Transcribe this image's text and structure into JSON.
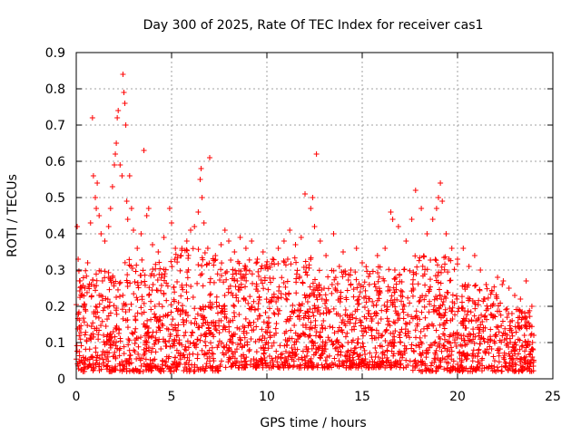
{
  "chart_data": {
    "type": "scatter",
    "title": "Day 300 of 2025, Rate Of TEC Index for receiver cas1",
    "xlabel": "GPS time / hours",
    "ylabel": "ROTI / TECUs",
    "xlim": [
      0,
      25
    ],
    "ylim": [
      0,
      0.9
    ],
    "xticks": [
      0,
      5,
      10,
      15,
      20,
      25
    ],
    "xtick_labels": [
      "0",
      "5",
      "10",
      "15",
      "20",
      "25"
    ],
    "yticks": [
      0,
      0.1,
      0.2,
      0.3,
      0.4,
      0.5,
      0.6,
      0.7,
      0.8,
      0.9
    ],
    "ytick_labels": [
      "0",
      "0.1",
      "0.2",
      "0.3",
      "0.4",
      "0.5",
      "0.6",
      "0.7",
      "0.8",
      "0.9"
    ],
    "grid": true,
    "marker": "+",
    "color": "#ff0000",
    "series": [
      {
        "points": [
          [
            0.05,
            0.42
          ],
          [
            0.1,
            0.33
          ],
          [
            0.2,
            0.27
          ],
          [
            0.3,
            0.23
          ],
          [
            0.45,
            0.25
          ],
          [
            0.6,
            0.32
          ],
          [
            0.75,
            0.43
          ],
          [
            0.85,
            0.72
          ],
          [
            0.9,
            0.56
          ],
          [
            1.0,
            0.5
          ],
          [
            1.05,
            0.47
          ],
          [
            1.1,
            0.54
          ],
          [
            1.2,
            0.45
          ],
          [
            1.3,
            0.4
          ],
          [
            1.5,
            0.38
          ],
          [
            1.7,
            0.42
          ],
          [
            1.8,
            0.47
          ],
          [
            1.9,
            0.53
          ],
          [
            2.0,
            0.59
          ],
          [
            2.05,
            0.62
          ],
          [
            2.1,
            0.65
          ],
          [
            2.15,
            0.72
          ],
          [
            2.2,
            0.74
          ],
          [
            2.3,
            0.59
          ],
          [
            2.4,
            0.56
          ],
          [
            2.45,
            0.84
          ],
          [
            2.5,
            0.79
          ],
          [
            2.55,
            0.76
          ],
          [
            2.6,
            0.7
          ],
          [
            2.65,
            0.49
          ],
          [
            2.7,
            0.44
          ],
          [
            2.8,
            0.56
          ],
          [
            2.9,
            0.47
          ],
          [
            3.0,
            0.41
          ],
          [
            3.2,
            0.36
          ],
          [
            3.4,
            0.4
          ],
          [
            3.55,
            0.63
          ],
          [
            3.7,
            0.45
          ],
          [
            3.8,
            0.47
          ],
          [
            4.0,
            0.37
          ],
          [
            4.3,
            0.35
          ],
          [
            4.6,
            0.39
          ],
          [
            4.9,
            0.47
          ],
          [
            5.0,
            0.43
          ],
          [
            5.2,
            0.36
          ],
          [
            5.5,
            0.34
          ],
          [
            5.8,
            0.38
          ],
          [
            6.0,
            0.41
          ],
          [
            6.2,
            0.42
          ],
          [
            6.4,
            0.46
          ],
          [
            6.5,
            0.55
          ],
          [
            6.55,
            0.58
          ],
          [
            6.6,
            0.5
          ],
          [
            6.7,
            0.43
          ],
          [
            6.9,
            0.36
          ],
          [
            7.0,
            0.61
          ],
          [
            7.3,
            0.34
          ],
          [
            7.6,
            0.37
          ],
          [
            7.8,
            0.41
          ],
          [
            8.0,
            0.38
          ],
          [
            8.3,
            0.35
          ],
          [
            8.6,
            0.39
          ],
          [
            8.9,
            0.36
          ],
          [
            9.2,
            0.38
          ],
          [
            9.5,
            0.33
          ],
          [
            9.8,
            0.35
          ],
          [
            10.0,
            0.31
          ],
          [
            10.3,
            0.33
          ],
          [
            10.6,
            0.36
          ],
          [
            10.9,
            0.38
          ],
          [
            11.2,
            0.41
          ],
          [
            11.5,
            0.37
          ],
          [
            11.8,
            0.39
          ],
          [
            12.0,
            0.51
          ],
          [
            12.3,
            0.47
          ],
          [
            12.4,
            0.5
          ],
          [
            12.5,
            0.42
          ],
          [
            12.6,
            0.62
          ],
          [
            12.8,
            0.38
          ],
          [
            13.1,
            0.34
          ],
          [
            13.5,
            0.4
          ],
          [
            13.8,
            0.31
          ],
          [
            14.0,
            0.35
          ],
          [
            14.4,
            0.3
          ],
          [
            14.7,
            0.36
          ],
          [
            15.0,
            0.32
          ],
          [
            15.4,
            0.29
          ],
          [
            15.8,
            0.34
          ],
          [
            16.2,
            0.36
          ],
          [
            16.5,
            0.46
          ],
          [
            16.6,
            0.44
          ],
          [
            16.9,
            0.42
          ],
          [
            17.3,
            0.38
          ],
          [
            17.6,
            0.44
          ],
          [
            17.8,
            0.52
          ],
          [
            18.1,
            0.47
          ],
          [
            18.4,
            0.4
          ],
          [
            18.7,
            0.44
          ],
          [
            18.9,
            0.47
          ],
          [
            19.0,
            0.5
          ],
          [
            19.1,
            0.54
          ],
          [
            19.2,
            0.49
          ],
          [
            19.4,
            0.4
          ],
          [
            19.7,
            0.36
          ],
          [
            20.0,
            0.33
          ],
          [
            20.3,
            0.36
          ],
          [
            20.6,
            0.31
          ],
          [
            20.9,
            0.34
          ],
          [
            21.2,
            0.3
          ],
          [
            21.5,
            0.26
          ],
          [
            21.8,
            0.24
          ],
          [
            22.1,
            0.28
          ],
          [
            22.4,
            0.27
          ],
          [
            22.7,
            0.25
          ],
          [
            23.0,
            0.23
          ],
          [
            23.3,
            0.22
          ],
          [
            23.6,
            0.27
          ],
          [
            23.9,
            0.2
          ],
          [
            24.0,
            0.12
          ]
        ],
        "bands": [
          {
            "from": 0.0,
            "to": 2.5,
            "low": 0.02,
            "high": 0.3,
            "count": 260
          },
          {
            "from": 2.5,
            "to": 5.0,
            "low": 0.02,
            "high": 0.33,
            "count": 260
          },
          {
            "from": 5.0,
            "to": 7.5,
            "low": 0.02,
            "high": 0.36,
            "count": 260
          },
          {
            "from": 7.5,
            "to": 10.0,
            "low": 0.03,
            "high": 0.33,
            "count": 260
          },
          {
            "from": 10.0,
            "to": 12.5,
            "low": 0.03,
            "high": 0.34,
            "count": 260
          },
          {
            "from": 12.5,
            "to": 15.0,
            "low": 0.03,
            "high": 0.3,
            "count": 260
          },
          {
            "from": 15.0,
            "to": 17.5,
            "low": 0.03,
            "high": 0.31,
            "count": 260
          },
          {
            "from": 17.5,
            "to": 20.0,
            "low": 0.02,
            "high": 0.34,
            "count": 260
          },
          {
            "from": 20.0,
            "to": 22.5,
            "low": 0.02,
            "high": 0.26,
            "count": 240
          },
          {
            "from": 22.5,
            "to": 24.0,
            "low": 0.02,
            "high": 0.2,
            "count": 160
          }
        ]
      }
    ]
  }
}
